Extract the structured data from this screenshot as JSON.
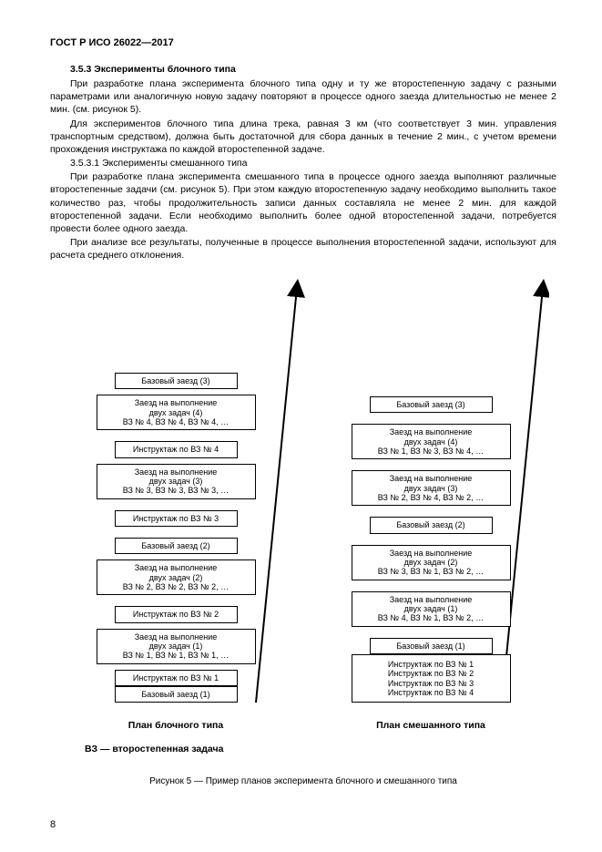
{
  "header": "ГОСТ Р ИСО 26022—2017",
  "section_num_title": "3.5.3 Эксперименты блочного типа",
  "para1": "При разработке плана эксперимента блочного типа одну и ту же второстепенную задачу с разными параметрами или аналогичную новую задачу повторяют в процессе одного заезда длительностью не менее 2 мин. (см. рисунок 5).",
  "para2": "Для экспериментов блочного типа длина трека, равная 3 км (что соответствует 3 мин. управления транспортным средством), должна быть достаточной для сбора данных в течение 2 мин., с учетом времени прохождения инструктажа по каждой второстепенной задаче.",
  "subsection": "3.5.3.1 Эксперименты смешанного типа",
  "para3": "При разработке плана эксперимента смешанного типа в процессе одного заезда выполняют различные второстепенные задачи (см. рисунок 5). При этом каждую второстепенную задачу необходимо выполнить такое количество раз, чтобы продолжительность записи данных составляла не менее 2 мин. для каждой второстепенной задачи. Если необходимо выполнить более одной второстепенной задачи, потребуется провести более одного заезда.",
  "para4": "При анализе все результаты, полученные в процессе выполнения второстепенной задачи, используют для расчета среднего отклонения.",
  "left_caption": "План блочного типа",
  "right_caption": "План смешанного типа",
  "legend": "ВЗ — второстепенная задача",
  "fig_caption": "Рисунок 5 — Пример планов эксперимента блочного и смешанного типа",
  "page_num": "8",
  "left_boxes": [
    {
      "cls": "narrow",
      "gap": "",
      "lines": [
        "Базовый заезд (1)"
      ]
    },
    {
      "cls": "narrow",
      "gap": "gap-s",
      "lines": [
        "Инструктаж по ВЗ № 1"
      ]
    },
    {
      "cls": "wide",
      "gap": "gap-s",
      "lines": [
        "Заезд на выполнение",
        "двух задач (1)",
        "ВЗ № 1, ВЗ № 1, ВЗ № 1, …"
      ]
    },
    {
      "cls": "narrow",
      "gap": "gap-m",
      "lines": [
        "Инструктаж по ВЗ № 2"
      ]
    },
    {
      "cls": "wide",
      "gap": "gap-s",
      "lines": [
        "Заезд на выполнение",
        "двух задач (2)",
        "ВЗ № 2, ВЗ № 2, ВЗ № 2, …"
      ]
    },
    {
      "cls": "narrow",
      "gap": "gap-m",
      "lines": [
        "Базовый заезд (2)"
      ]
    },
    {
      "cls": "narrow",
      "gap": "gap-m",
      "lines": [
        "Инструктаж по ВЗ № 3"
      ]
    },
    {
      "cls": "wide",
      "gap": "gap-s",
      "lines": [
        "Заезд на выполнение",
        "двух задач (3)",
        "ВЗ № 3, ВЗ № 3, ВЗ № 3, …"
      ]
    },
    {
      "cls": "narrow",
      "gap": "gap-m",
      "lines": [
        "Инструктаж по ВЗ № 4"
      ]
    },
    {
      "cls": "wide",
      "gap": "gap-s",
      "lines": [
        "Заезд на выполнение",
        "двух задач (4)",
        "ВЗ № 4, ВЗ № 4, ВЗ № 4, …"
      ]
    },
    {
      "cls": "narrow",
      "gap": "gap-m",
      "lines": [
        "Базовый заезд (3)"
      ]
    }
  ],
  "right_boxes": [
    {
      "cls": "wide tall",
      "gap": "",
      "lines": [
        "Инструктаж по ВЗ № 1",
        "Инструктаж по ВЗ № 2",
        "Инструктаж по ВЗ № 3",
        "Инструктаж по ВЗ № 4"
      ]
    },
    {
      "cls": "narrow",
      "gap": "gap-m",
      "lines": [
        "Базовый заезд (1)"
      ]
    },
    {
      "cls": "wide",
      "gap": "gap-m",
      "lines": [
        "Заезд на выполнение",
        "двух задач (1)",
        "ВЗ № 4, ВЗ № 1, ВЗ № 2, …"
      ]
    },
    {
      "cls": "wide",
      "gap": "gap-m",
      "lines": [
        "Заезд на выполнение",
        "двух задач (2)",
        "ВЗ № 3, ВЗ № 1, ВЗ № 2, …"
      ]
    },
    {
      "cls": "narrow",
      "gap": "gap-m",
      "lines": [
        "Базовый заезд (2)"
      ]
    },
    {
      "cls": "wide",
      "gap": "gap-m",
      "lines": [
        "Заезд на выполнение",
        "двух задач (3)",
        "ВЗ № 2, ВЗ № 4, ВЗ № 2, …"
      ]
    },
    {
      "cls": "wide",
      "gap": "gap-m",
      "lines": [
        "Заезд на выполнение",
        "двух задач (4)",
        "ВЗ № 1, ВЗ № 3, ВЗ № 4, …"
      ]
    },
    {
      "cls": "narrow",
      "gap": "gap-m",
      "lines": [
        "Базовый заезд (3)"
      ]
    }
  ]
}
